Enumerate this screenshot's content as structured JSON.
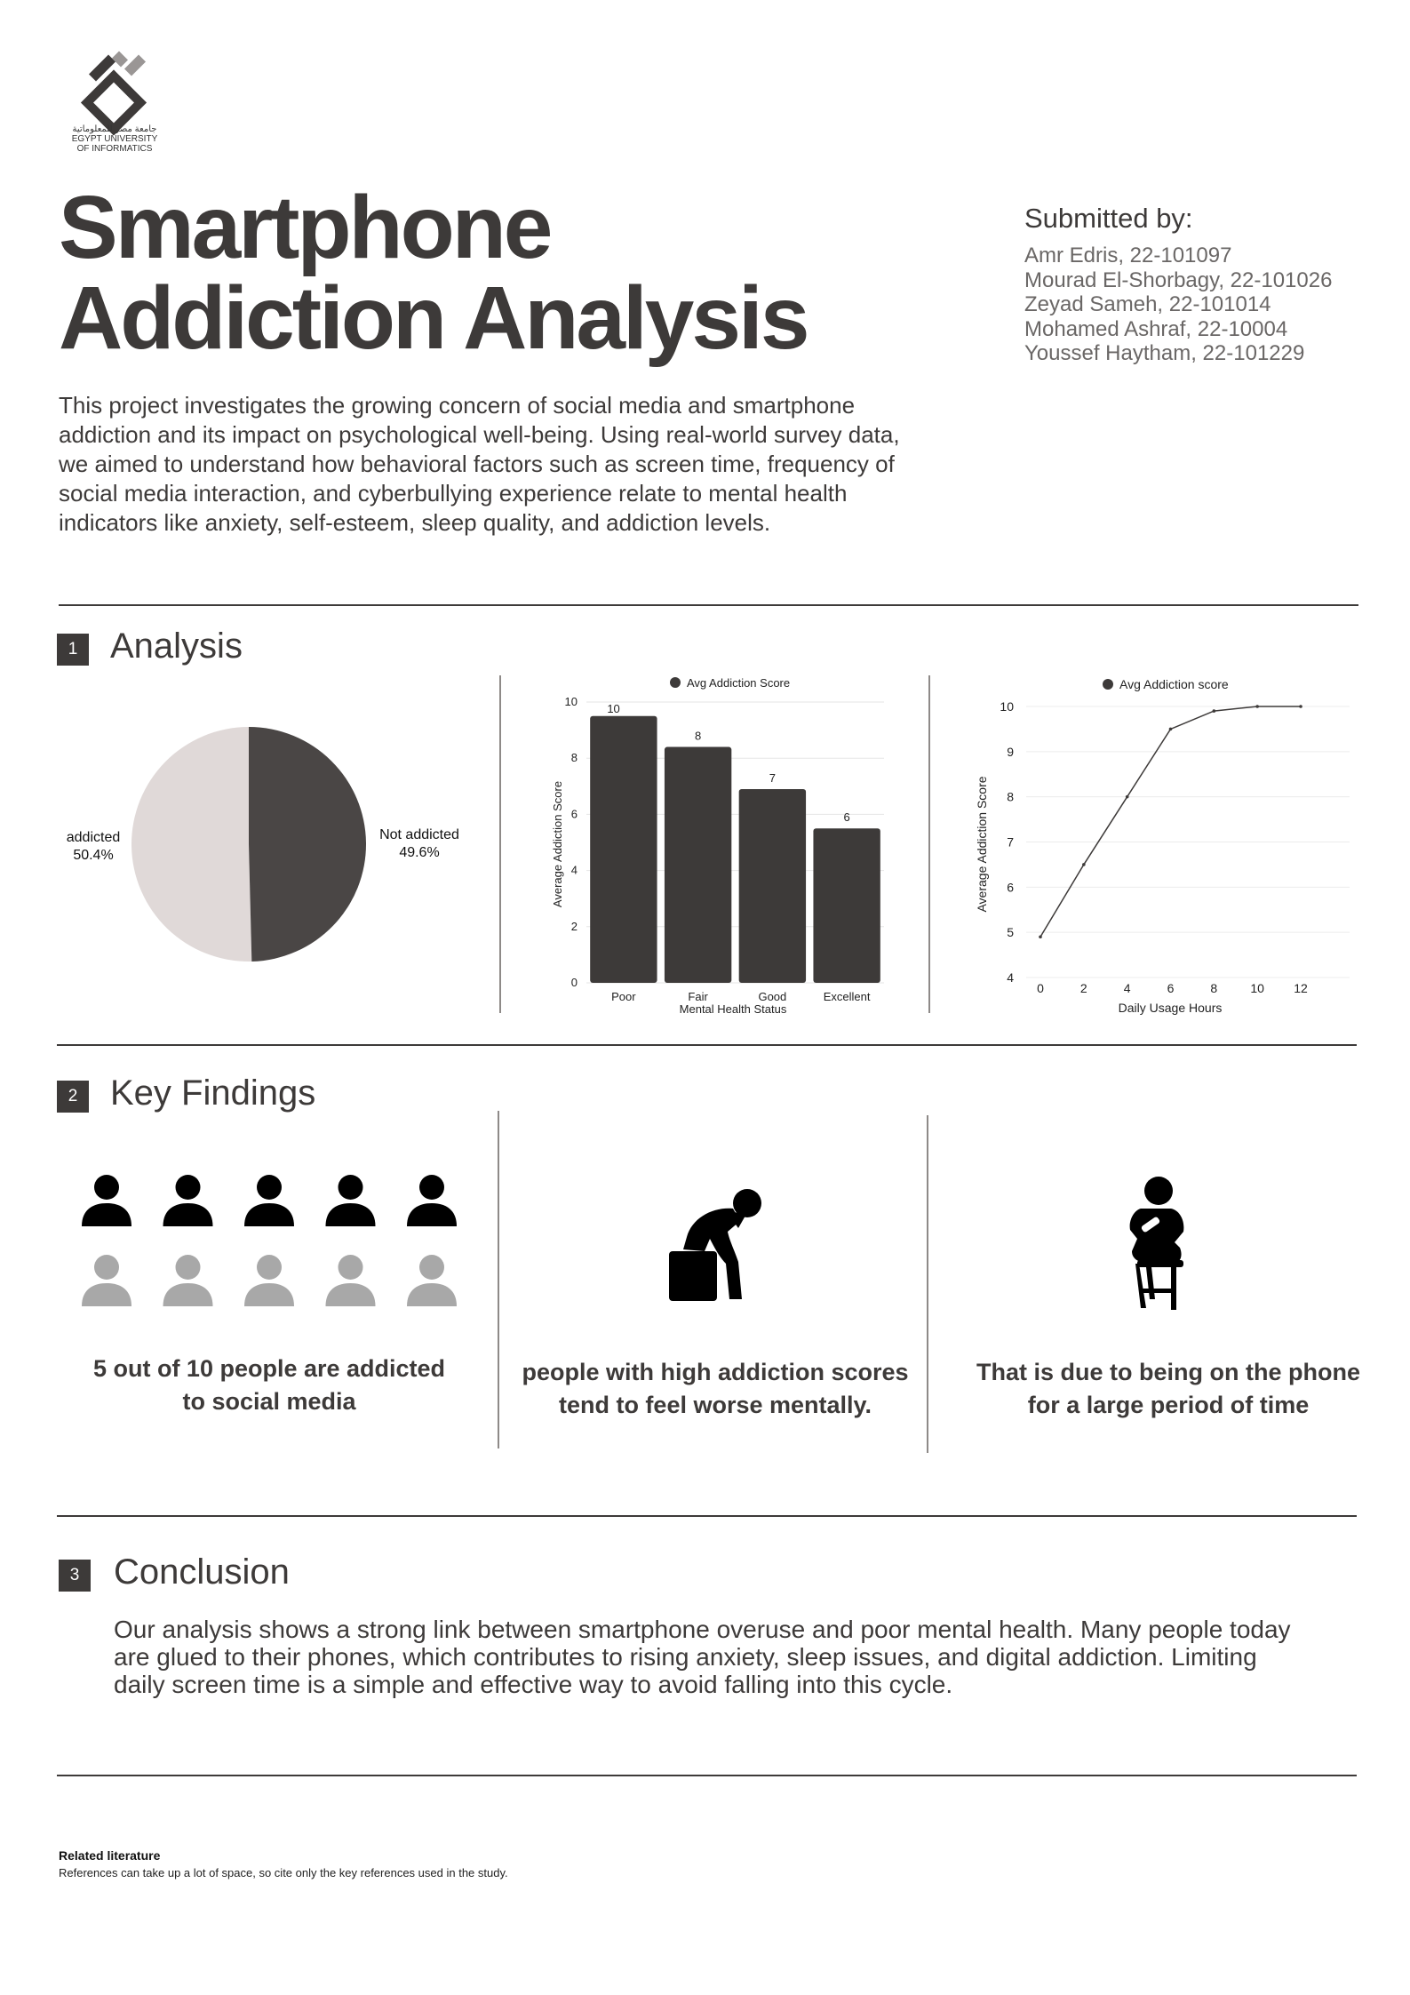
{
  "logo": {
    "arabic": "جامعة مصر للمعلوماتية",
    "line1": "EGYPT UNIVERSITY",
    "line2": "OF INFORMATICS"
  },
  "title": {
    "line1": "Smartphone",
    "line2": "Addiction Analysis"
  },
  "intro": "This project investigates the growing concern of social media and smartphone addiction and its impact on psychological well-being. Using real-world survey data, we aimed to understand how behavioral factors such as screen time, frequency of social media interaction, and cyberbullying experience relate to mental health indicators like anxiety, self-esteem, sleep quality, and addiction levels.",
  "submitted": {
    "heading": "Submitted by:",
    "members": [
      "Amr Edris, 22-101097",
      "Mourad El-Shorbagy, 22-101026",
      "Zeyad Sameh, 22-101014",
      "Mohamed Ashraf, 22-10004",
      "Youssef Haytham, 22-101229"
    ]
  },
  "sections": {
    "analysis": {
      "num": "1",
      "title": "Analysis"
    },
    "findings": {
      "num": "2",
      "title": "Key Findings"
    },
    "conclusion": {
      "num": "3",
      "title": "Conclusion"
    }
  },
  "colors": {
    "dark": "#3d3a39",
    "light": "#e0d9d8",
    "icon_grey": "#a8a8a8",
    "black": "#000000"
  },
  "chart_data": [
    {
      "type": "pie",
      "slices": [
        {
          "label": "addicted",
          "percent_label": "50.4%",
          "value": 50.4,
          "color": "#e0d9d8"
        },
        {
          "label": "Not addicted",
          "percent_label": "49.6%",
          "value": 49.6,
          "color": "#4a4645"
        }
      ]
    },
    {
      "type": "bar",
      "legend": "Avg Addiction Score",
      "legend_position": "top",
      "categories": [
        "Poor",
        "Fair",
        "Good",
        "Excellent"
      ],
      "values": [
        9.5,
        8.4,
        6.9,
        5.5
      ],
      "data_labels": [
        "10",
        "8",
        "7",
        "6"
      ],
      "xlabel": "Mental Health Status",
      "ylabel": "Average Addiction Score",
      "ylim": [
        0,
        10
      ],
      "yticks": [
        0,
        2,
        4,
        6,
        8,
        10
      ],
      "grid": true
    },
    {
      "type": "line",
      "legend": "Avg Addiction score",
      "legend_position": "top",
      "x": [
        0,
        2,
        4,
        6,
        8,
        10,
        12
      ],
      "y": [
        4.9,
        6.5,
        8.0,
        9.5,
        9.9,
        10.0,
        10.0
      ],
      "xlabel": "Daily Usage Hours",
      "ylabel": "Average Addiction Score",
      "xlim": [
        0,
        12
      ],
      "ylim": [
        4,
        10
      ],
      "xticks": [
        0,
        2,
        4,
        6,
        8,
        10,
        12
      ],
      "yticks": [
        4,
        5,
        6,
        7,
        8,
        9,
        10
      ],
      "grid": true
    }
  ],
  "findings": {
    "people_icons": {
      "addicted": 5,
      "total": 10
    },
    "items": [
      {
        "text_line1": "5 out of 10 people are addicted",
        "text_line2": "to social media",
        "icon": "people-grid-icon"
      },
      {
        "text_line1": "people with high addiction scores",
        "text_line2": "tend to feel worse mentally.",
        "icon": "distressed-person-icon"
      },
      {
        "text_line1": "That is due to being on the phone",
        "text_line2": "for a large period of time",
        "icon": "person-on-phone-icon"
      }
    ]
  },
  "conclusion": "Our analysis shows a strong link between smartphone overuse and poor mental health. Many people today are glued to their phones, which contributes to rising anxiety, sleep issues, and digital addiction. Limiting daily screen time is a simple and effective way to avoid falling into this cycle.",
  "literature": {
    "title": "Related literature",
    "body": "References can take up a lot of space, so cite only the key references used in the study."
  }
}
